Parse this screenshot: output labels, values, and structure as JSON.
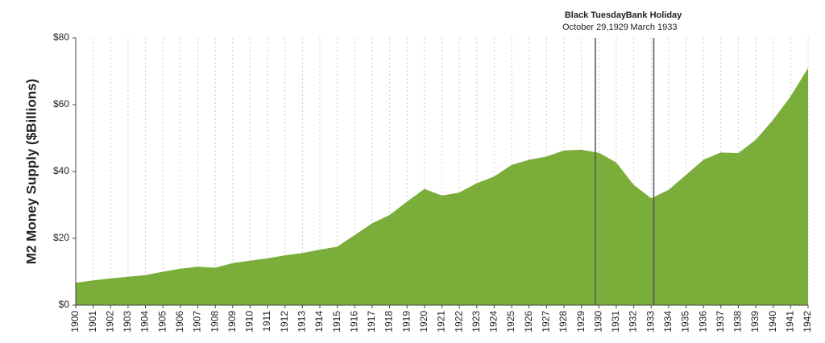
{
  "chart_data": {
    "type": "area",
    "y_label": "M2 Money Supply ($Billions)",
    "x": [
      1900,
      1901,
      1902,
      1903,
      1904,
      1905,
      1906,
      1907,
      1908,
      1909,
      1910,
      1911,
      1912,
      1913,
      1914,
      1915,
      1916,
      1917,
      1918,
      1919,
      1920,
      1921,
      1922,
      1923,
      1924,
      1925,
      1926,
      1927,
      1928,
      1929,
      1930,
      1931,
      1932,
      1933,
      1934,
      1935,
      1936,
      1937,
      1938,
      1939,
      1940,
      1941,
      1942
    ],
    "values": [
      6.7,
      7.4,
      8.0,
      8.5,
      9.0,
      10.0,
      10.9,
      11.5,
      11.2,
      12.6,
      13.3,
      14.0,
      14.9,
      15.6,
      16.6,
      17.5,
      21,
      24.5,
      27,
      31,
      34.8,
      32.8,
      33.7,
      36.5,
      38.5,
      42,
      43.5,
      44.5,
      46.3,
      46.5,
      45.6,
      42.7,
      36,
      32,
      34.5,
      39,
      43.5,
      45.7,
      45.5,
      49.5,
      55.5,
      62.5,
      71
    ],
    "color": "#7aad3a",
    "xlim": [
      1900,
      1942
    ],
    "ylim": [
      0,
      80
    ],
    "yticks": [
      {
        "value": 0,
        "label": "$0"
      },
      {
        "value": 20,
        "label": "$20"
      },
      {
        "value": 40,
        "label": "$40"
      },
      {
        "value": 60,
        "label": "$60"
      },
      {
        "value": 80,
        "label": "$80"
      }
    ],
    "grid": true,
    "annotations": [
      {
        "x": 1929.8,
        "label": "Black Tuesday",
        "sublabel": "October 29,1929"
      },
      {
        "x": 1933.15,
        "label": "Bank Holiday",
        "sublabel": "March 1933"
      }
    ]
  }
}
